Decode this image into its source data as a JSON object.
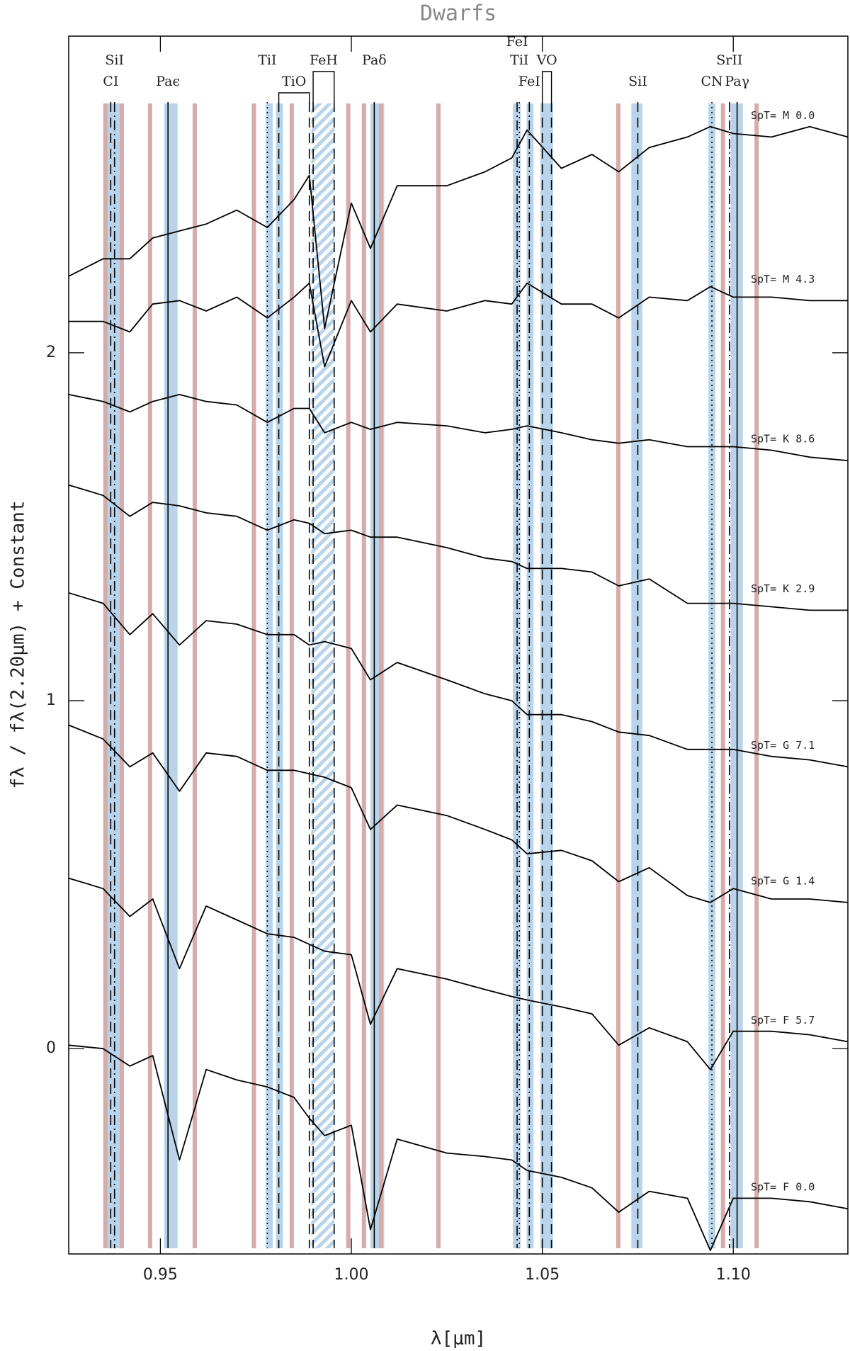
{
  "chart_data": {
    "type": "line",
    "title": "Dwarfs",
    "x_label": "λ[μm]",
    "y_label": "fλ / fλ(2.20μm) + Constant",
    "xlim": [
      0.926,
      1.13
    ],
    "ylim": [
      -0.59,
      2.91
    ],
    "xticks": [
      {
        "value": 0.95,
        "label": "0.95"
      },
      {
        "value": 1.0,
        "label": "1.00"
      },
      {
        "value": 1.05,
        "label": "1.05"
      },
      {
        "value": 1.1,
        "label": "1.10"
      }
    ],
    "yticks": [
      0,
      1,
      2
    ],
    "grid": false,
    "x": [
      0.926,
      0.935,
      0.942,
      0.948,
      0.955,
      0.962,
      0.97,
      0.978,
      0.985,
      0.989,
      0.993,
      1.0,
      1.005,
      1.012,
      1.025,
      1.035,
      1.042,
      1.046,
      1.055,
      1.063,
      1.07,
      1.078,
      1.088,
      1.094,
      1.1,
      1.11,
      1.12,
      1.13
    ],
    "series": [
      {
        "name": "SpT= M 0.0",
        "color": "#000000",
        "values": [
          2.22,
          2.27,
          2.27,
          2.33,
          2.35,
          2.37,
          2.41,
          2.36,
          2.44,
          2.51,
          2.07,
          2.43,
          2.3,
          2.48,
          2.48,
          2.52,
          2.56,
          2.64,
          2.53,
          2.57,
          2.52,
          2.59,
          2.62,
          2.65,
          2.63,
          2.62,
          2.65,
          2.62
        ]
      },
      {
        "name": "SpT= M 4.3",
        "color": "#000000",
        "values": [
          2.09,
          2.09,
          2.06,
          2.14,
          2.15,
          2.12,
          2.16,
          2.1,
          2.16,
          2.2,
          1.96,
          2.15,
          2.06,
          2.14,
          2.12,
          2.15,
          2.14,
          2.2,
          2.14,
          2.14,
          2.1,
          2.16,
          2.15,
          2.19,
          2.16,
          2.16,
          2.15,
          2.15
        ]
      },
      {
        "name": "SpT= K 8.6",
        "color": "#000000",
        "values": [
          1.88,
          1.86,
          1.83,
          1.86,
          1.88,
          1.86,
          1.85,
          1.8,
          1.84,
          1.84,
          1.77,
          1.8,
          1.78,
          1.8,
          1.79,
          1.77,
          1.78,
          1.79,
          1.77,
          1.75,
          1.74,
          1.75,
          1.73,
          1.73,
          1.73,
          1.72,
          1.7,
          1.69
        ]
      },
      {
        "name": "SpT= K 2.9",
        "color": "#000000",
        "values": [
          1.62,
          1.59,
          1.53,
          1.57,
          1.56,
          1.54,
          1.53,
          1.49,
          1.52,
          1.51,
          1.48,
          1.49,
          1.47,
          1.47,
          1.44,
          1.41,
          1.4,
          1.38,
          1.38,
          1.37,
          1.33,
          1.35,
          1.28,
          1.28,
          1.28,
          1.27,
          1.26,
          1.26
        ]
      },
      {
        "name": "SpT= G 7.1",
        "color": "#000000",
        "values": [
          1.31,
          1.28,
          1.19,
          1.25,
          1.16,
          1.23,
          1.22,
          1.19,
          1.19,
          1.16,
          1.17,
          1.15,
          1.06,
          1.11,
          1.06,
          1.02,
          1.0,
          0.96,
          0.96,
          0.94,
          0.91,
          0.9,
          0.86,
          0.86,
          0.86,
          0.84,
          0.83,
          0.81
        ]
      },
      {
        "name": "SpT= G 1.4",
        "color": "#000000",
        "values": [
          0.93,
          0.89,
          0.81,
          0.85,
          0.74,
          0.85,
          0.84,
          0.8,
          0.8,
          0.79,
          0.78,
          0.75,
          0.63,
          0.7,
          0.67,
          0.63,
          0.6,
          0.56,
          0.57,
          0.54,
          0.48,
          0.52,
          0.44,
          0.42,
          0.46,
          0.43,
          0.43,
          0.42
        ]
      },
      {
        "name": "SpT= F 5.7",
        "color": "#000000",
        "values": [
          0.49,
          0.46,
          0.38,
          0.43,
          0.23,
          0.41,
          0.37,
          0.33,
          0.32,
          0.3,
          0.28,
          0.27,
          0.07,
          0.23,
          0.2,
          0.17,
          0.15,
          0.14,
          0.12,
          0.1,
          0.01,
          0.06,
          0.02,
          -0.06,
          0.05,
          0.05,
          0.04,
          0.02
        ]
      },
      {
        "name": "SpT= F 0.0",
        "color": "#000000",
        "values": [
          0.01,
          0.0,
          -0.05,
          -0.02,
          -0.32,
          -0.06,
          -0.09,
          -0.11,
          -0.14,
          -0.2,
          -0.25,
          -0.22,
          -0.52,
          -0.26,
          -0.3,
          -0.31,
          -0.32,
          -0.35,
          -0.37,
          -0.4,
          -0.47,
          -0.41,
          -0.43,
          -0.58,
          -0.43,
          -0.43,
          -0.44,
          -0.46
        ]
      }
    ],
    "blue_bands": {
      "color": "#b9d4ea",
      "ranges": [
        [
          0.936,
          0.9395
        ],
        [
          0.951,
          0.9545
        ],
        [
          0.9776,
          0.9794
        ],
        [
          0.9803,
          0.9821
        ],
        [
          1.005,
          1.0086
        ],
        [
          1.0423,
          1.0443
        ],
        [
          1.0459,
          1.0477
        ],
        [
          1.0495,
          1.0528
        ],
        [
          1.0733,
          1.0762
        ],
        [
          1.0935,
          1.0953
        ],
        [
          1.0993,
          1.1025
        ]
      ]
    },
    "hatched_band": {
      "color": "#b9d4ea",
      "range": [
        0.9895,
        0.9956
      ]
    },
    "pink_lines": {
      "color": "#d6abab",
      "x": [
        0.9356,
        0.9399,
        0.9473,
        0.959,
        0.9745,
        0.9844,
        0.9992,
        1.0033,
        1.0078,
        1.0228,
        1.0699,
        1.0973,
        1.1061
      ]
    },
    "line_ids": [
      {
        "label": "CI",
        "x": 0.937,
        "style": "dashed"
      },
      {
        "label": "SiI",
        "x": 0.938,
        "style": "dashdot"
      },
      {
        "label": "Paϵ",
        "x": 0.952,
        "style": "solid"
      },
      {
        "label": "TiI",
        "x": 0.978,
        "style": "dotted"
      },
      {
        "label": "TiO",
        "x": [
          0.981,
          0.989
        ],
        "style": "dashed"
      },
      {
        "label": "FeH",
        "x": [
          0.99,
          0.9955
        ],
        "style": "dashed"
      },
      {
        "label": "Paδ",
        "x": 1.006,
        "style": "solid"
      },
      {
        "label": "FeI",
        "x": 1.0434,
        "style": "dashdot"
      },
      {
        "label": "TiI",
        "x": 1.044,
        "style": "dotted"
      },
      {
        "label": "FeI",
        "x": 1.0466,
        "style": "dashdot"
      },
      {
        "label": "VO",
        "x": [
          1.05,
          1.0524
        ],
        "style": "dashed"
      },
      {
        "label": "SiI",
        "x": 1.075,
        "style": "dashed"
      },
      {
        "label": "CN",
        "x": 1.0944,
        "style": "dotted"
      },
      {
        "label": "SrII",
        "x": 1.099,
        "style": "dashdot"
      },
      {
        "label": "Paγ",
        "x": 1.101,
        "style": "solid"
      }
    ]
  }
}
